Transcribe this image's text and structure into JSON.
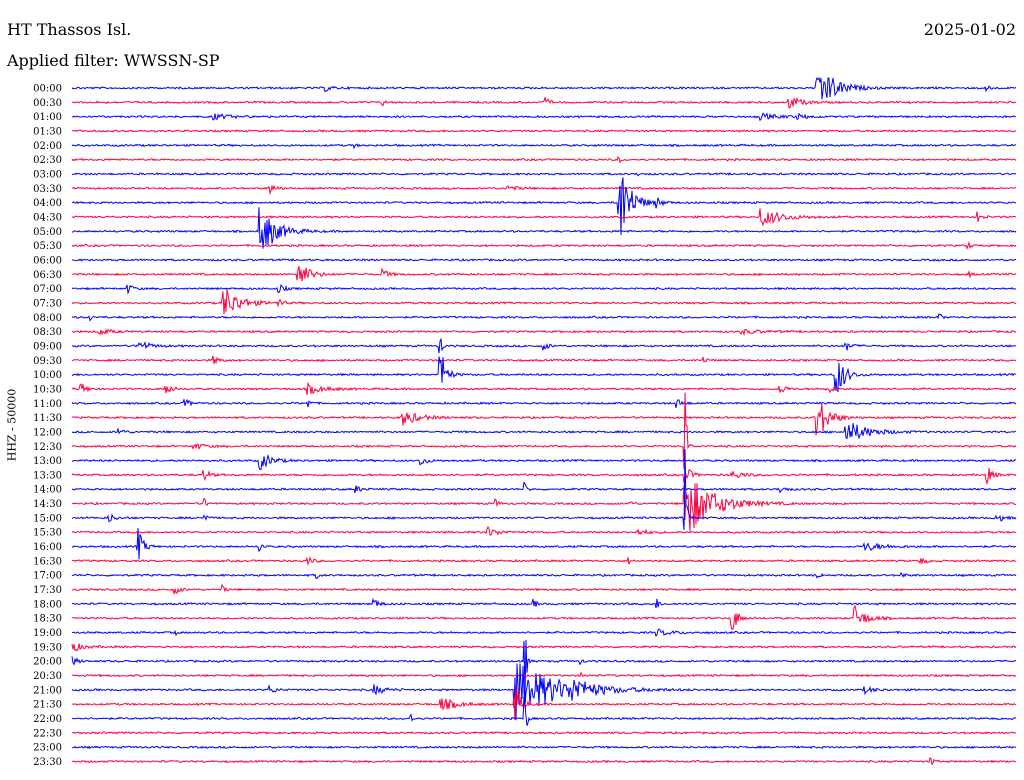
{
  "header": {
    "station": "HT Thassos Isl.",
    "date": "2025-01-02",
    "filter_label": "Applied filter: WWSSN-SP"
  },
  "chart_data": {
    "type": "seismogram",
    "ylabel": "HHZ - 50000",
    "colors": [
      "#0000ff",
      "#ff0040"
    ],
    "rows": [
      {
        "time": "00:00",
        "events": [
          {
            "t": 0.79,
            "amp": 28,
            "dur": 0.03
          },
          {
            "t": 0.27,
            "amp": 3,
            "dur": 0.01
          },
          {
            "t": 0.97,
            "amp": 5,
            "dur": 0.005
          }
        ]
      },
      {
        "time": "00:30",
        "events": [
          {
            "t": 0.5,
            "amp": 5,
            "dur": 0.01
          },
          {
            "t": 0.76,
            "amp": 7,
            "dur": 0.02
          },
          {
            "t": 0.33,
            "amp": 3,
            "dur": 0.005
          }
        ]
      },
      {
        "time": "01:00",
        "events": [
          {
            "t": 0.15,
            "amp": 3,
            "dur": 0.03
          },
          {
            "t": 0.73,
            "amp": 3,
            "dur": 0.03
          },
          {
            "t": 0.77,
            "amp": 2,
            "dur": 0.02
          }
        ]
      },
      {
        "time": "01:30",
        "events": []
      },
      {
        "time": "02:00",
        "events": [
          {
            "t": 0.3,
            "amp": 2,
            "dur": 0.003
          }
        ]
      },
      {
        "time": "02:30",
        "events": [
          {
            "t": 0.58,
            "amp": 3,
            "dur": 0.003
          }
        ]
      },
      {
        "time": "03:00",
        "events": [
          {
            "t": 0.6,
            "amp": 2,
            "dur": 0.003
          }
        ]
      },
      {
        "time": "03:30",
        "events": [
          {
            "t": 0.21,
            "amp": 5,
            "dur": 0.01
          },
          {
            "t": 0.46,
            "amp": 3,
            "dur": 0.02
          }
        ]
      },
      {
        "time": "04:00",
        "events": [
          {
            "t": 0.58,
            "amp": 50,
            "dur": 0.02
          },
          {
            "t": 0.62,
            "amp": 5,
            "dur": 0.008
          }
        ]
      },
      {
        "time": "04:30",
        "events": [
          {
            "t": 0.73,
            "amp": 9,
            "dur": 0.04
          },
          {
            "t": 0.96,
            "amp": 5,
            "dur": 0.008
          }
        ]
      },
      {
        "time": "05:00",
        "events": [
          {
            "t": 0.2,
            "amp": 25,
            "dur": 0.03
          }
        ]
      },
      {
        "time": "05:30",
        "events": [
          {
            "t": 0.95,
            "amp": 3,
            "dur": 0.005
          }
        ]
      },
      {
        "time": "06:00",
        "events": []
      },
      {
        "time": "06:30",
        "events": [
          {
            "t": 0.24,
            "amp": 14,
            "dur": 0.02
          },
          {
            "t": 0.33,
            "amp": 5,
            "dur": 0.01
          },
          {
            "t": 0.95,
            "amp": 3,
            "dur": 0.005
          }
        ]
      },
      {
        "time": "07:00",
        "events": [
          {
            "t": 0.06,
            "amp": 4,
            "dur": 0.01
          },
          {
            "t": 0.22,
            "amp": 4,
            "dur": 0.01
          }
        ]
      },
      {
        "time": "07:30",
        "events": [
          {
            "t": 0.16,
            "amp": 18,
            "dur": 0.03
          },
          {
            "t": 0.22,
            "amp": 5,
            "dur": 0.005
          }
        ]
      },
      {
        "time": "08:00",
        "events": [
          {
            "t": 0.02,
            "amp": 3,
            "dur": 0.003
          },
          {
            "t": 0.92,
            "amp": 3,
            "dur": 0.005
          }
        ]
      },
      {
        "time": "08:30",
        "events": [
          {
            "t": 0.03,
            "amp": 3,
            "dur": 0.02
          },
          {
            "t": 0.71,
            "amp": 2,
            "dur": 0.04
          }
        ]
      },
      {
        "time": "09:00",
        "events": [
          {
            "t": 0.07,
            "amp": 6,
            "dur": 0.02
          },
          {
            "t": 0.39,
            "amp": 20,
            "dur": 0.003
          },
          {
            "t": 0.5,
            "amp": 4,
            "dur": 0.01
          },
          {
            "t": 0.82,
            "amp": 5,
            "dur": 0.01
          }
        ]
      },
      {
        "time": "09:30",
        "events": [
          {
            "t": 0.15,
            "amp": 4,
            "dur": 0.01
          },
          {
            "t": 0.67,
            "amp": 3,
            "dur": 0.005
          }
        ]
      },
      {
        "time": "10:00",
        "events": [
          {
            "t": 0.39,
            "amp": 32,
            "dur": 0.01
          },
          {
            "t": 0.81,
            "amp": 25,
            "dur": 0.015
          }
        ]
      },
      {
        "time": "10:30",
        "events": [
          {
            "t": 0.01,
            "amp": 6,
            "dur": 0.01
          },
          {
            "t": 0.1,
            "amp": 6,
            "dur": 0.01
          },
          {
            "t": 0.25,
            "amp": 5,
            "dur": 0.03
          },
          {
            "t": 0.75,
            "amp": 6,
            "dur": 0.01
          },
          {
            "t": 0.8,
            "amp": 5,
            "dur": 0.01
          }
        ]
      },
      {
        "time": "11:00",
        "events": [
          {
            "t": 0.12,
            "amp": 4,
            "dur": 0.01
          },
          {
            "t": 0.25,
            "amp": 5,
            "dur": 0.005
          },
          {
            "t": 0.64,
            "amp": 5,
            "dur": 0.01
          }
        ]
      },
      {
        "time": "11:30",
        "events": [
          {
            "t": 0.35,
            "amp": 8,
            "dur": 0.03
          },
          {
            "t": 0.79,
            "amp": 24,
            "dur": 0.02
          }
        ]
      },
      {
        "time": "12:00",
        "events": [
          {
            "t": 0.05,
            "amp": 4,
            "dur": 0.01
          },
          {
            "t": 0.82,
            "amp": 12,
            "dur": 0.04
          }
        ]
      },
      {
        "time": "12:30",
        "events": [
          {
            "t": 0.13,
            "amp": 3,
            "dur": 0.02
          },
          {
            "t": 0.65,
            "amp": 65,
            "dur": 0.003
          }
        ]
      },
      {
        "time": "13:00",
        "events": [
          {
            "t": 0.2,
            "amp": 9,
            "dur": 0.02
          },
          {
            "t": 0.37,
            "amp": 5,
            "dur": 0.01
          }
        ]
      },
      {
        "time": "13:30",
        "events": [
          {
            "t": 0.14,
            "amp": 6,
            "dur": 0.01
          },
          {
            "t": 0.65,
            "amp": 10,
            "dur": 0.01
          },
          {
            "t": 0.7,
            "amp": 4,
            "dur": 0.02
          },
          {
            "t": 0.97,
            "amp": 8,
            "dur": 0.01
          }
        ]
      },
      {
        "time": "14:00",
        "events": [
          {
            "t": 0.3,
            "amp": 4,
            "dur": 0.01
          },
          {
            "t": 0.48,
            "amp": 6,
            "dur": 0.005
          },
          {
            "t": 0.75,
            "amp": 4,
            "dur": 0.01
          }
        ]
      },
      {
        "time": "14:30",
        "events": [
          {
            "t": 0.65,
            "amp": 35,
            "dur": 0.05
          },
          {
            "t": 0.14,
            "amp": 5,
            "dur": 0.005
          },
          {
            "t": 0.45,
            "amp": 4,
            "dur": 0.005
          },
          {
            "t": 0.59,
            "amp": 5,
            "dur": 0.005
          }
        ]
      },
      {
        "time": "15:00",
        "events": [
          {
            "t": 0.04,
            "amp": 4,
            "dur": 0.01
          },
          {
            "t": 0.14,
            "amp": 6,
            "dur": 0.005
          },
          {
            "t": 0.65,
            "amp": 70,
            "dur": 0.003
          },
          {
            "t": 0.98,
            "amp": 6,
            "dur": 0.01
          }
        ]
      },
      {
        "time": "15:30",
        "events": [
          {
            "t": 0.44,
            "amp": 5,
            "dur": 0.02
          },
          {
            "t": 0.6,
            "amp": 3,
            "dur": 0.02
          }
        ]
      },
      {
        "time": "16:00",
        "events": [
          {
            "t": 0.07,
            "amp": 18,
            "dur": 0.01
          },
          {
            "t": 0.2,
            "amp": 5,
            "dur": 0.005
          },
          {
            "t": 0.84,
            "amp": 4,
            "dur": 0.04
          }
        ]
      },
      {
        "time": "16:30",
        "events": [
          {
            "t": 0.25,
            "amp": 4,
            "dur": 0.01
          },
          {
            "t": 0.59,
            "amp": 3,
            "dur": 0.005
          },
          {
            "t": 0.9,
            "amp": 3,
            "dur": 0.01
          }
        ]
      },
      {
        "time": "17:00",
        "events": [
          {
            "t": 0.26,
            "amp": 3,
            "dur": 0.005
          },
          {
            "t": 0.79,
            "amp": 3,
            "dur": 0.005
          },
          {
            "t": 0.88,
            "amp": 3,
            "dur": 0.005
          }
        ]
      },
      {
        "time": "17:30",
        "events": [
          {
            "t": 0.11,
            "amp": 4,
            "dur": 0.01
          },
          {
            "t": 0.16,
            "amp": 4,
            "dur": 0.005
          }
        ]
      },
      {
        "time": "18:00",
        "events": [
          {
            "t": 0.32,
            "amp": 5,
            "dur": 0.01
          },
          {
            "t": 0.49,
            "amp": 4,
            "dur": 0.005
          },
          {
            "t": 0.62,
            "amp": 5,
            "dur": 0.005
          }
        ]
      },
      {
        "time": "18:30",
        "events": [
          {
            "t": 0.7,
            "amp": 14,
            "dur": 0.01
          },
          {
            "t": 0.83,
            "amp": 12,
            "dur": 0.02
          }
        ]
      },
      {
        "time": "19:00",
        "events": [
          {
            "t": 0.11,
            "amp": 2,
            "dur": 0.003
          },
          {
            "t": 0.62,
            "amp": 3,
            "dur": 0.03
          }
        ]
      },
      {
        "time": "19:30",
        "events": [
          {
            "t": 0.0,
            "amp": 5,
            "dur": 0.02
          }
        ]
      },
      {
        "time": "20:00",
        "events": [
          {
            "t": 0.0,
            "amp": 5,
            "dur": 0.01
          },
          {
            "t": 0.48,
            "amp": 40,
            "dur": 0.003
          },
          {
            "t": 0.54,
            "amp": 3,
            "dur": 0.003
          }
        ]
      },
      {
        "time": "20:30",
        "events": [
          {
            "t": 0.54,
            "amp": 3,
            "dur": 0.003
          }
        ]
      },
      {
        "time": "21:00",
        "events": [
          {
            "t": 0.47,
            "amp": 30,
            "dur": 0.08
          },
          {
            "t": 0.53,
            "amp": 8,
            "dur": 0.03
          },
          {
            "t": 0.21,
            "amp": 4,
            "dur": 0.01
          },
          {
            "t": 0.32,
            "amp": 5,
            "dur": 0.02
          },
          {
            "t": 0.84,
            "amp": 3,
            "dur": 0.02
          }
        ]
      },
      {
        "time": "21:30",
        "events": [
          {
            "t": 0.39,
            "amp": 7,
            "dur": 0.03
          },
          {
            "t": 0.47,
            "amp": 22,
            "dur": 0.01
          }
        ]
      },
      {
        "time": "22:00",
        "events": [
          {
            "t": 0.36,
            "amp": 4,
            "dur": 0.003
          },
          {
            "t": 0.48,
            "amp": 30,
            "dur": 0.003
          }
        ]
      },
      {
        "time": "22:30",
        "events": []
      },
      {
        "time": "23:00",
        "events": []
      },
      {
        "time": "23:30",
        "events": [
          {
            "t": 0.91,
            "amp": 5,
            "dur": 0.005
          }
        ]
      }
    ]
  }
}
